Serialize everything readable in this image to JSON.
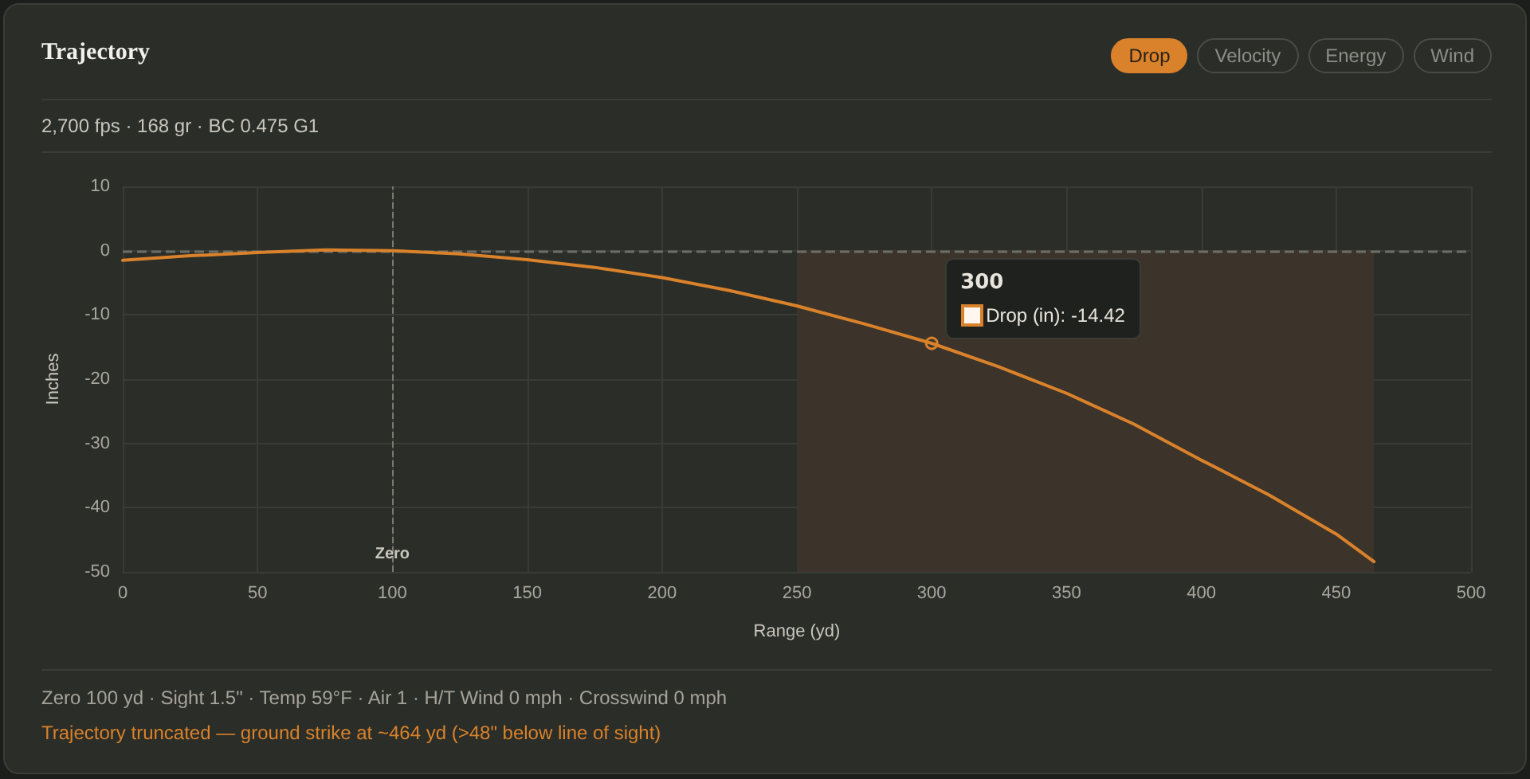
{
  "chart_data": {
    "type": "line",
    "title": "Trajectory",
    "subtitle": "2,700 fps · 168 gr · BC 0.475 G1",
    "xlabel": "Range (yd)",
    "ylabel": "Inches",
    "x": [
      0,
      25,
      50,
      75,
      100,
      125,
      150,
      175,
      200,
      225,
      250,
      275,
      300,
      325,
      350,
      375,
      400,
      425,
      450,
      464
    ],
    "series": [
      {
        "color": "#d9822b",
        "values": [
          -1.5,
          -0.8,
          -0.3,
          0.1,
          0,
          -0.5,
          -1.4,
          -2.6,
          -4.2,
          -6.2,
          -8.6,
          -11.4,
          -14.42,
          -18.1,
          -22.2,
          -27,
          -32.6,
          -38,
          -44.1,
          -48.4
        ]
      }
    ],
    "xlim": [
      0,
      500
    ],
    "xticks": [
      0,
      50,
      100,
      150,
      200,
      250,
      300,
      350,
      400,
      450,
      500
    ],
    "ylim": [
      -50,
      10
    ],
    "yticks": [
      -50,
      -40,
      -30,
      -20,
      -10,
      0,
      10
    ],
    "grid": true,
    "marker": "none",
    "line_style": "solid",
    "ref_lines": [
      {
        "axis": "y",
        "value": 0,
        "label": null,
        "line_style": "dashed",
        "color": "#6e6e68"
      },
      {
        "axis": "x",
        "value": 100,
        "label": "Zero",
        "line_style": "dashed",
        "color": "#7a7a72"
      }
    ],
    "bands": [
      {
        "axis": "x",
        "from": 250,
        "to": 464,
        "label": null,
        "color": "#3c342a"
      }
    ],
    "annotations": [
      "Drop",
      "Velocity",
      "Energy",
      "Wind",
      "300",
      {
        "text": "Drop (in): -14.42",
        "x": 300,
        "y": -14.42
      },
      "Zero 100 yd · Sight 1.5\" · Temp 59°F · Air 1 · H/T Wind 0 mph · Crosswind 0 mph",
      "Trajectory truncated — ground strike at ~464 yd (>48\" below line of sight)"
    ]
  }
}
